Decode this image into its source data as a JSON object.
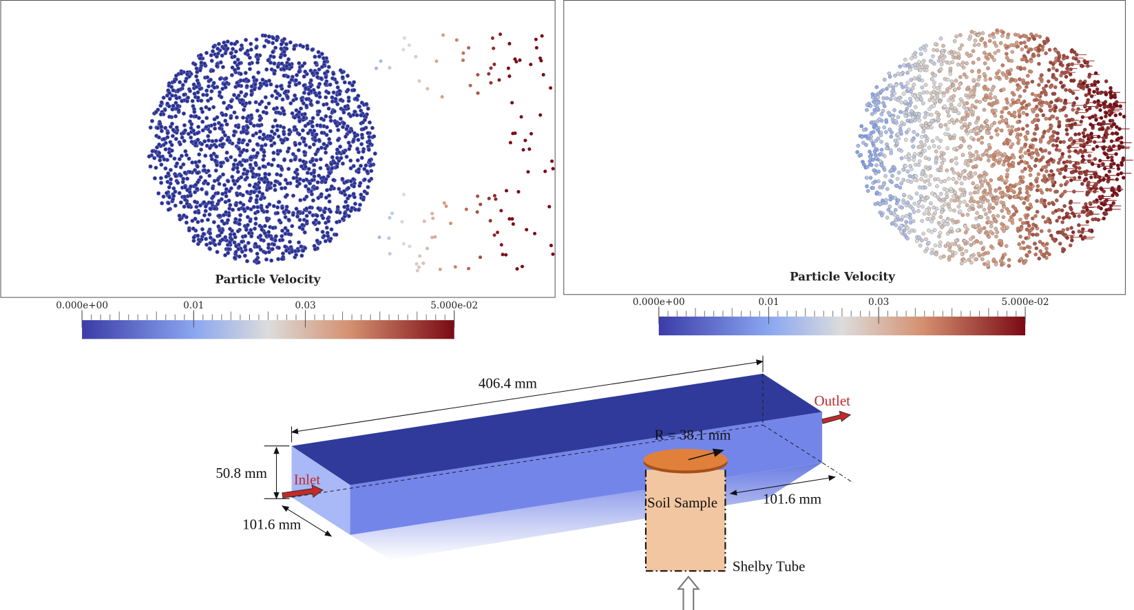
{
  "panels": [
    {
      "label": "Particle Velocity",
      "colorbar": {
        "ticks": [
          "0.000e+00",
          "0.01",
          "0.03",
          "5.000e-02"
        ]
      }
    },
    {
      "label": "Particle Velocity",
      "colorbar": {
        "ticks": [
          "0.000e+00",
          "0.01",
          "0.03",
          "5.000e-02"
        ]
      }
    }
  ],
  "diagram": {
    "length": "406.4 mm",
    "height": "50.8 mm",
    "width": "101.6 mm",
    "offset": "101.6 mm",
    "radius": "R = 38.1 mm",
    "inlet": "Inlet",
    "outlet": "Outlet",
    "sample": "Soil Sample",
    "tube": "Shelby Tube"
  }
}
